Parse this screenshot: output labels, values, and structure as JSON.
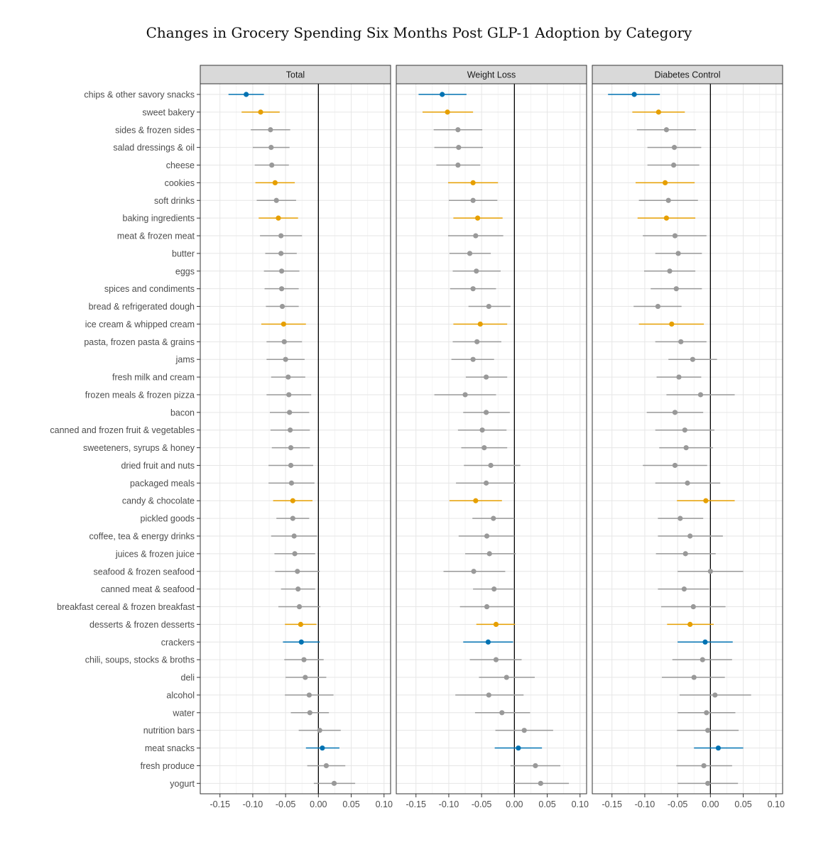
{
  "chart_data": {
    "type": "scatter",
    "title": "Changes in Grocery Spending Six Months Post GLP-1 Adoption by Category",
    "xlabel": "",
    "ylabel": "",
    "xlim": [
      -0.18,
      0.11
    ],
    "x_ticks": [
      -0.15,
      -0.1,
      -0.05,
      0.0,
      0.05,
      0.1
    ],
    "x_tick_labels": [
      "-0.15",
      "-0.10",
      "-0.05",
      "0.00",
      "0.05",
      "0.10"
    ],
    "grid": true,
    "colors": {
      "significant_negative": "#0072B2",
      "significant_orange": "#E69F00",
      "not_significant": "#999999",
      "zero_line": "#000000",
      "panel_strip": "#D9D9D9"
    },
    "categories": [
      "chips & other savory snacks",
      "sweet bakery",
      "sides & frozen sides",
      "salad dressings & oil",
      "cheese",
      "cookies",
      "soft drinks",
      "baking ingredients",
      "meat & frozen meat",
      "butter",
      "eggs",
      "spices and condiments",
      "bread & refrigerated dough",
      "ice cream & whipped cream",
      "pasta, frozen pasta & grains",
      "jams",
      "fresh milk and cream",
      "frozen meals & frozen pizza",
      "bacon",
      "canned and frozen fruit & vegetables",
      "sweeteners, syrups & honey",
      "dried fruit and nuts",
      "packaged meals",
      "candy & chocolate",
      "pickled goods",
      "coffee, tea & energy drinks",
      "juices & frozen juice",
      "seafood & frozen seafood",
      "canned meat & seafood",
      "breakfast cereal & frozen breakfast",
      "desserts & frozen desserts",
      "crackers",
      "chili, soups, stocks & broths",
      "deli",
      "alcohol",
      "water",
      "nutrition bars",
      "meat snacks",
      "fresh produce",
      "yogurt"
    ],
    "panels": [
      {
        "name": "Total",
        "estimate": [
          -0.11,
          -0.088,
          -0.073,
          -0.072,
          -0.071,
          -0.066,
          -0.064,
          -0.061,
          -0.057,
          -0.057,
          -0.056,
          -0.056,
          -0.055,
          -0.053,
          -0.052,
          -0.05,
          -0.046,
          -0.045,
          -0.044,
          -0.043,
          -0.042,
          -0.042,
          -0.041,
          -0.039,
          -0.039,
          -0.037,
          -0.036,
          -0.032,
          -0.031,
          -0.029,
          -0.027,
          -0.026,
          -0.022,
          -0.02,
          -0.014,
          -0.013,
          0.002,
          0.006,
          0.012,
          0.024
        ],
        "lower": [
          -0.137,
          -0.117,
          -0.103,
          -0.1,
          -0.097,
          -0.096,
          -0.094,
          -0.091,
          -0.089,
          -0.081,
          -0.083,
          -0.082,
          -0.08,
          -0.087,
          -0.079,
          -0.079,
          -0.072,
          -0.079,
          -0.074,
          -0.073,
          -0.071,
          -0.076,
          -0.076,
          -0.069,
          -0.064,
          -0.072,
          -0.067,
          -0.066,
          -0.057,
          -0.061,
          -0.051,
          -0.054,
          -0.052,
          -0.05,
          -0.051,
          -0.042,
          -0.03,
          -0.019,
          -0.017,
          -0.007
        ],
        "upper": [
          -0.083,
          -0.059,
          -0.043,
          -0.044,
          -0.045,
          -0.036,
          -0.034,
          -0.031,
          -0.025,
          -0.033,
          -0.029,
          -0.03,
          -0.03,
          -0.019,
          -0.025,
          -0.021,
          -0.02,
          -0.011,
          -0.014,
          -0.013,
          -0.013,
          -0.008,
          -0.006,
          -0.009,
          -0.014,
          -0.002,
          -0.005,
          0.002,
          -0.005,
          0.003,
          -0.003,
          0.002,
          0.008,
          0.012,
          0.023,
          0.016,
          0.034,
          0.032,
          0.041,
          0.056
        ],
        "color": [
          "blue",
          "orange",
          "grey",
          "grey",
          "grey",
          "orange",
          "grey",
          "orange",
          "grey",
          "grey",
          "grey",
          "grey",
          "grey",
          "orange",
          "grey",
          "grey",
          "grey",
          "grey",
          "grey",
          "grey",
          "grey",
          "grey",
          "grey",
          "orange",
          "grey",
          "grey",
          "grey",
          "grey",
          "grey",
          "grey",
          "orange",
          "blue",
          "grey",
          "grey",
          "grey",
          "grey",
          "grey",
          "blue",
          "grey",
          "grey"
        ]
      },
      {
        "name": "Weight Loss",
        "estimate": [
          -0.11,
          -0.102,
          -0.086,
          -0.085,
          -0.086,
          -0.063,
          -0.063,
          -0.056,
          -0.059,
          -0.068,
          -0.058,
          -0.063,
          -0.039,
          -0.052,
          -0.057,
          -0.063,
          -0.043,
          -0.075,
          -0.043,
          -0.049,
          -0.046,
          -0.036,
          -0.043,
          -0.059,
          -0.032,
          -0.042,
          -0.038,
          -0.062,
          -0.031,
          -0.042,
          -0.028,
          -0.04,
          -0.028,
          -0.012,
          -0.039,
          -0.019,
          0.015,
          0.006,
          0.032,
          0.04
        ],
        "lower": [
          -0.146,
          -0.14,
          -0.123,
          -0.122,
          -0.119,
          -0.101,
          -0.1,
          -0.093,
          -0.101,
          -0.099,
          -0.094,
          -0.098,
          -0.07,
          -0.093,
          -0.094,
          -0.096,
          -0.074,
          -0.122,
          -0.078,
          -0.086,
          -0.081,
          -0.077,
          -0.089,
          -0.099,
          -0.064,
          -0.085,
          -0.075,
          -0.108,
          -0.063,
          -0.083,
          -0.058,
          -0.078,
          -0.068,
          -0.054,
          -0.09,
          -0.06,
          -0.029,
          -0.03,
          -0.006,
          -0.002
        ],
        "upper": [
          -0.073,
          -0.063,
          -0.049,
          -0.048,
          -0.052,
          -0.025,
          -0.026,
          -0.018,
          -0.017,
          -0.036,
          -0.021,
          -0.028,
          -0.006,
          -0.011,
          -0.02,
          -0.031,
          -0.011,
          -0.028,
          -0.007,
          -0.012,
          -0.011,
          0.009,
          0.002,
          -0.019,
          0.0,
          0.0,
          0.002,
          -0.014,
          0.0,
          0.0,
          0.001,
          -0.002,
          0.011,
          0.031,
          0.014,
          0.024,
          0.059,
          0.042,
          0.07,
          0.083
        ],
        "color": [
          "blue",
          "orange",
          "grey",
          "grey",
          "grey",
          "orange",
          "grey",
          "orange",
          "grey",
          "grey",
          "grey",
          "grey",
          "grey",
          "orange",
          "grey",
          "grey",
          "grey",
          "grey",
          "grey",
          "grey",
          "grey",
          "grey",
          "grey",
          "orange",
          "grey",
          "grey",
          "grey",
          "grey",
          "grey",
          "grey",
          "orange",
          "blue",
          "grey",
          "grey",
          "grey",
          "grey",
          "grey",
          "blue",
          "grey",
          "grey"
        ]
      },
      {
        "name": "Diabetes Control",
        "estimate": [
          -0.116,
          -0.079,
          -0.067,
          -0.055,
          -0.056,
          -0.069,
          -0.064,
          -0.067,
          -0.054,
          -0.049,
          -0.062,
          -0.052,
          -0.08,
          -0.059,
          -0.045,
          -0.027,
          -0.048,
          -0.015,
          -0.054,
          -0.039,
          -0.037,
          -0.054,
          -0.035,
          -0.007,
          -0.046,
          -0.031,
          -0.038,
          0.0,
          -0.04,
          -0.026,
          -0.031,
          -0.008,
          -0.012,
          -0.025,
          0.007,
          -0.006,
          -0.004,
          0.012,
          -0.01,
          -0.004
        ],
        "lower": [
          -0.156,
          -0.119,
          -0.112,
          -0.096,
          -0.096,
          -0.114,
          -0.109,
          -0.111,
          -0.103,
          -0.084,
          -0.101,
          -0.091,
          -0.117,
          -0.109,
          -0.084,
          -0.064,
          -0.082,
          -0.067,
          -0.097,
          -0.084,
          -0.078,
          -0.103,
          -0.084,
          -0.051,
          -0.08,
          -0.08,
          -0.083,
          -0.05,
          -0.08,
          -0.075,
          -0.066,
          -0.05,
          -0.058,
          -0.074,
          -0.047,
          -0.05,
          -0.051,
          -0.025,
          -0.052,
          -0.05
        ],
        "upper": [
          -0.077,
          -0.039,
          -0.022,
          -0.014,
          -0.017,
          -0.024,
          -0.019,
          -0.023,
          -0.006,
          -0.013,
          -0.023,
          -0.013,
          -0.044,
          -0.01,
          -0.006,
          0.01,
          -0.014,
          0.037,
          -0.011,
          0.006,
          0.004,
          -0.005,
          0.015,
          0.037,
          -0.011,
          0.019,
          0.008,
          0.05,
          -0.002,
          0.023,
          0.005,
          0.034,
          0.033,
          0.022,
          0.062,
          0.038,
          0.043,
          0.05,
          0.033,
          0.042
        ],
        "color": [
          "blue",
          "orange",
          "grey",
          "grey",
          "grey",
          "orange",
          "grey",
          "orange",
          "grey",
          "grey",
          "grey",
          "grey",
          "grey",
          "orange",
          "grey",
          "grey",
          "grey",
          "grey",
          "grey",
          "grey",
          "grey",
          "grey",
          "grey",
          "orange",
          "grey",
          "grey",
          "grey",
          "grey",
          "grey",
          "grey",
          "orange",
          "blue",
          "grey",
          "grey",
          "grey",
          "grey",
          "grey",
          "blue",
          "grey",
          "grey"
        ]
      }
    ]
  }
}
